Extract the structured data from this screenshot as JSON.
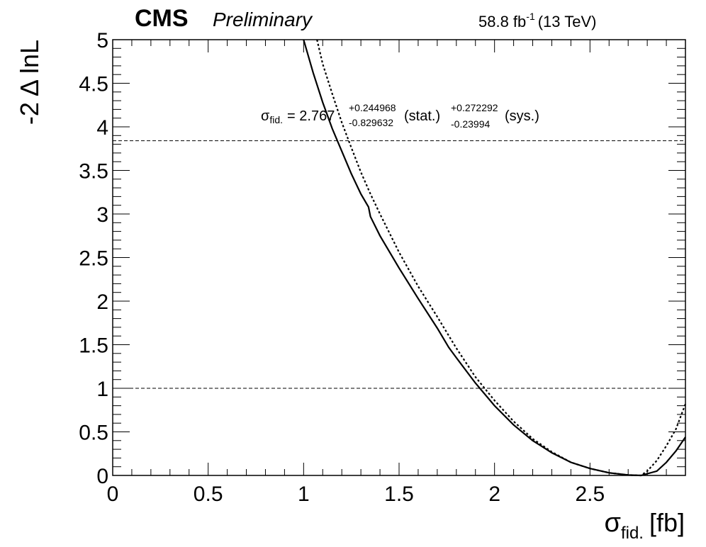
{
  "header": {
    "experiment": "CMS",
    "status": "Preliminary",
    "lumi_value": "58.8 fb",
    "lumi_exp": "-1",
    "energy": "(13 TeV)"
  },
  "annotation": {
    "sigma_symbol": "σ",
    "sigma_sub": "fid.",
    "central": "= 2.767",
    "stat_up": "+0.244968",
    "stat_down": "-0.829632",
    "stat_label": "(stat.)",
    "sys_up": "+0.272292",
    "sys_down": "-0.23994",
    "sys_label": "(sys.)"
  },
  "chart_data": {
    "type": "line",
    "xlabel_symbol": "σ",
    "xlabel_sub": "fid.",
    "xlabel_unit": "[fb]",
    "ylabel": "-2 Δ lnL",
    "xlim": [
      0,
      3.0
    ],
    "ylim": [
      0,
      5
    ],
    "x_ticks": [
      {
        "value": 0,
        "label": "0"
      },
      {
        "value": 0.5,
        "label": "0.5"
      },
      {
        "value": 1.0,
        "label": "1"
      },
      {
        "value": 1.5,
        "label": "1.5"
      },
      {
        "value": 2.0,
        "label": "2"
      },
      {
        "value": 2.5,
        "label": "2.5"
      }
    ],
    "y_ticks": [
      {
        "value": 0,
        "label": "0"
      },
      {
        "value": 0.5,
        "label": "0.5"
      },
      {
        "value": 1.0,
        "label": "1"
      },
      {
        "value": 1.5,
        "label": "1.5"
      },
      {
        "value": 2.0,
        "label": "2"
      },
      {
        "value": 2.5,
        "label": "2.5"
      },
      {
        "value": 3.0,
        "label": "3"
      },
      {
        "value": 3.5,
        "label": "3.5"
      },
      {
        "value": 4.0,
        "label": "4"
      },
      {
        "value": 4.5,
        "label": "4.5"
      },
      {
        "value": 5.0,
        "label": "5"
      }
    ],
    "reference_lines": [
      1.0,
      3.84
    ],
    "series": [
      {
        "style": "solid",
        "points": [
          [
            1.0,
            5.0
          ],
          [
            1.05,
            4.62
          ],
          [
            1.1,
            4.28
          ],
          [
            1.15,
            3.98
          ],
          [
            1.2,
            3.72
          ],
          [
            1.25,
            3.46
          ],
          [
            1.3,
            3.23
          ],
          [
            1.34,
            3.08
          ],
          [
            1.35,
            2.97
          ],
          [
            1.4,
            2.75
          ],
          [
            1.5,
            2.38
          ],
          [
            1.6,
            2.03
          ],
          [
            1.7,
            1.69
          ],
          [
            1.76,
            1.47
          ],
          [
            1.8,
            1.35
          ],
          [
            1.9,
            1.06
          ],
          [
            2.0,
            0.8
          ],
          [
            2.1,
            0.58
          ],
          [
            2.2,
            0.4
          ],
          [
            2.3,
            0.26
          ],
          [
            2.4,
            0.15
          ],
          [
            2.5,
            0.08
          ],
          [
            2.6,
            0.03
          ],
          [
            2.7,
            0.005
          ],
          [
            2.767,
            0.0
          ],
          [
            2.85,
            0.05
          ],
          [
            2.9,
            0.15
          ],
          [
            2.95,
            0.28
          ],
          [
            3.0,
            0.44
          ]
        ]
      },
      {
        "style": "dotted",
        "points": [
          [
            1.07,
            5.0
          ],
          [
            1.1,
            4.72
          ],
          [
            1.15,
            4.38
          ],
          [
            1.2,
            4.05
          ],
          [
            1.25,
            3.76
          ],
          [
            1.3,
            3.48
          ],
          [
            1.35,
            3.23
          ],
          [
            1.4,
            3.0
          ],
          [
            1.5,
            2.56
          ],
          [
            1.6,
            2.17
          ],
          [
            1.7,
            1.82
          ],
          [
            1.8,
            1.46
          ],
          [
            1.9,
            1.13
          ],
          [
            2.0,
            0.86
          ],
          [
            2.1,
            0.62
          ],
          [
            2.2,
            0.42
          ],
          [
            2.3,
            0.27
          ],
          [
            2.4,
            0.15
          ],
          [
            2.5,
            0.08
          ],
          [
            2.6,
            0.03
          ],
          [
            2.7,
            0.005
          ],
          [
            2.767,
            0.0
          ],
          [
            2.8,
            0.05
          ],
          [
            2.85,
            0.17
          ],
          [
            2.9,
            0.34
          ],
          [
            2.95,
            0.53
          ],
          [
            3.0,
            0.82
          ]
        ]
      }
    ]
  }
}
